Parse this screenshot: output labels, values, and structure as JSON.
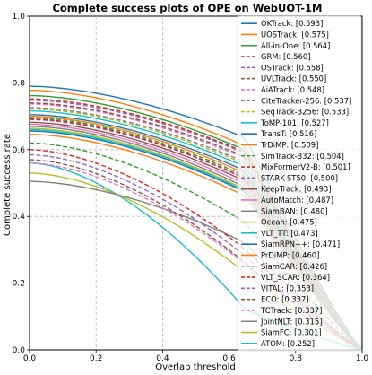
{
  "chart_data": {
    "type": "line",
    "title": "Complete success plots of OPE on WebUOT-1M",
    "xlabel": "Overlap threshold",
    "ylabel": "Complete success rate",
    "xlim": [
      0,
      1
    ],
    "ylim": [
      0,
      1
    ],
    "xticks": [
      "0.0",
      "0.2",
      "0.4",
      "0.6",
      "0.8",
      "1.0"
    ],
    "yticks": [
      "0.0",
      "0.2",
      "0.4",
      "0.6",
      "0.8",
      "1.0"
    ],
    "grid": true,
    "legend_position": "right",
    "series": [
      {
        "name": "OKTrack: [0.593]",
        "color": "#1f77b4",
        "dashed": false,
        "y0": 0.79,
        "y65": 0.635
      },
      {
        "name": "UOSTrack: [0.575]",
        "color": "#ff7f0e",
        "dashed": false,
        "y0": 0.778,
        "y65": 0.61
      },
      {
        "name": "All-in-One: [0.564]",
        "color": "#2ca02c",
        "dashed": false,
        "y0": 0.762,
        "y65": 0.598
      },
      {
        "name": "GRM: [0.560]",
        "color": "#d62728",
        "dashed": true,
        "y0": 0.752,
        "y65": 0.592
      },
      {
        "name": "OSTrack: [0.558]",
        "color": "#9467bd",
        "dashed": true,
        "y0": 0.748,
        "y65": 0.588
      },
      {
        "name": "UVLTrack: [0.550]",
        "color": "#8c564b",
        "dashed": true,
        "y0": 0.74,
        "y65": 0.578
      },
      {
        "name": "AiATrack: [0.548]",
        "color": "#e377c2",
        "dashed": true,
        "y0": 0.737,
        "y65": 0.573
      },
      {
        "name": "CiteTracker-256: [0.537]",
        "color": "#7f7f7f",
        "dashed": true,
        "y0": 0.726,
        "y65": 0.562
      },
      {
        "name": "SeqTrack-B256: [0.533]",
        "color": "#bcbd22",
        "dashed": true,
        "y0": 0.722,
        "y65": 0.556
      },
      {
        "name": "ToMP-101: [0.527]",
        "color": "#17becf",
        "dashed": false,
        "y0": 0.716,
        "y65": 0.548
      },
      {
        "name": "TransT: [0.516]",
        "color": "#1f77b4",
        "dashed": false,
        "y0": 0.705,
        "y65": 0.536
      },
      {
        "name": "TrDiMP: [0.509]",
        "color": "#ff7f0e",
        "dashed": false,
        "y0": 0.7,
        "y65": 0.528
      },
      {
        "name": "SimTrack-B32: [0.504]",
        "color": "#2ca02c",
        "dashed": true,
        "y0": 0.696,
        "y65": 0.52
      },
      {
        "name": "MixFormerV2-B: [0.501]",
        "color": "#d62728",
        "dashed": true,
        "y0": 0.692,
        "y65": 0.514
      },
      {
        "name": "STARK-ST50: [0.500]",
        "color": "#9467bd",
        "dashed": true,
        "y0": 0.69,
        "y65": 0.512
      },
      {
        "name": "KeepTrack: [0.493]",
        "color": "#8c564b",
        "dashed": false,
        "y0": 0.682,
        "y65": 0.505
      },
      {
        "name": "AutoMatch: [0.487]",
        "color": "#e377c2",
        "dashed": false,
        "y0": 0.676,
        "y65": 0.496
      },
      {
        "name": "SiamBAN: [0.480]",
        "color": "#7f7f7f",
        "dashed": false,
        "y0": 0.67,
        "y65": 0.487
      },
      {
        "name": "Ocean: [0.475]",
        "color": "#bcbd22",
        "dashed": false,
        "y0": 0.664,
        "y65": 0.48
      },
      {
        "name": "VLT_TT: [0.473]",
        "color": "#17becf",
        "dashed": false,
        "y0": 0.66,
        "y65": 0.476
      },
      {
        "name": "SiamRPN++: [0.471]",
        "color": "#1f77b4",
        "dashed": false,
        "y0": 0.656,
        "y65": 0.472
      },
      {
        "name": "PrDiMP: [0.460]",
        "color": "#ff7f0e",
        "dashed": false,
        "y0": 0.646,
        "y65": 0.46
      },
      {
        "name": "SiamCAR: [0.426]",
        "color": "#2ca02c",
        "dashed": true,
        "y0": 0.62,
        "y65": 0.38
      },
      {
        "name": "VLT_SCAR: [0.364]",
        "color": "#d62728",
        "dashed": true,
        "y0": 0.6,
        "y65": 0.3
      },
      {
        "name": "VITAL: [0.353]",
        "color": "#9467bd",
        "dashed": true,
        "y0": 0.585,
        "y65": 0.28
      },
      {
        "name": "ECO: [0.337]",
        "color": "#8c564b",
        "dashed": true,
        "y0": 0.57,
        "y65": 0.26
      },
      {
        "name": "TCTrack: [0.337]",
        "color": "#e377c2",
        "dashed": true,
        "y0": 0.56,
        "y65": 0.255
      },
      {
        "name": "JointNLT: [0.315]",
        "color": "#7f7f7f",
        "dashed": false,
        "y0": 0.505,
        "y65": 0.32
      },
      {
        "name": "SiamFC: [0.301]",
        "color": "#bcbd22",
        "dashed": false,
        "y0": 0.53,
        "y65": 0.23
      },
      {
        "name": "ATOM: [0.252]",
        "color": "#17becf",
        "dashed": false,
        "y0": 0.56,
        "y65": 0.12
      }
    ]
  }
}
